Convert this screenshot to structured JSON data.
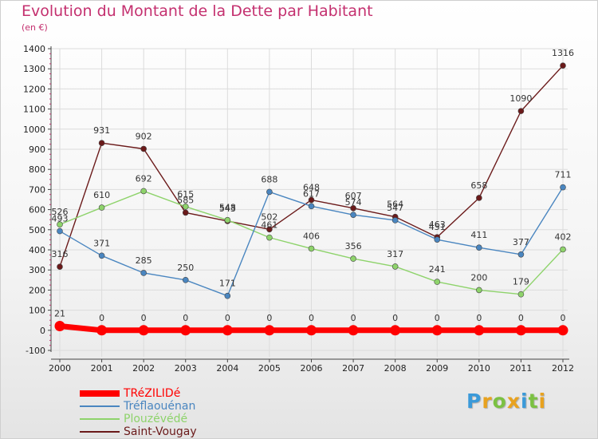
{
  "chart_data": {
    "type": "line",
    "title": "Evolution du Montant de la Dette par Habitant",
    "subtitle": "(en €)",
    "xlabel": "",
    "ylabel": "",
    "ylim": [
      -100,
      1400
    ],
    "yticks": [
      -100,
      0,
      100,
      200,
      300,
      400,
      500,
      600,
      700,
      800,
      900,
      1000,
      1100,
      1200,
      1300,
      1400
    ],
    "categories": [
      "2000",
      "2001",
      "2002",
      "2003",
      "2004",
      "2005",
      "2006",
      "2007",
      "2008",
      "2009",
      "2010",
      "2011",
      "2012"
    ],
    "grid": true,
    "legend_position": "bottom-left",
    "series": [
      {
        "name": "TRéZILIDé",
        "color": "#ff0000",
        "values": [
          21,
          0,
          0,
          0,
          0,
          0,
          0,
          0,
          0,
          0,
          0,
          0,
          0
        ]
      },
      {
        "name": "Tréflaouénan",
        "color": "#4a86c0",
        "values": [
          493,
          371,
          285,
          250,
          171,
          688,
          617,
          574,
          547,
          451,
          411,
          377,
          711
        ]
      },
      {
        "name": "Plouzévédé",
        "color": "#8ed36b",
        "values": [
          526,
          610,
          692,
          615,
          548,
          461,
          406,
          356,
          317,
          241,
          200,
          179,
          402
        ]
      },
      {
        "name": "Saint-Vougay",
        "color": "#6b1a1a",
        "values": [
          316,
          931,
          902,
          585,
          543,
          502,
          648,
          607,
          564,
          463,
          658,
          1090,
          1316
        ]
      }
    ]
  },
  "logo": {
    "letters": [
      {
        "ch": "P",
        "color": "#3b9ad9"
      },
      {
        "ch": "r",
        "color": "#e8a21f"
      },
      {
        "ch": "o",
        "color": "#7bc142"
      },
      {
        "ch": "x",
        "color": "#e8a21f"
      },
      {
        "ch": "i",
        "color": "#3b9ad9"
      },
      {
        "ch": "t",
        "color": "#7bc142"
      },
      {
        "ch": "i",
        "color": "#e8a21f"
      }
    ]
  }
}
